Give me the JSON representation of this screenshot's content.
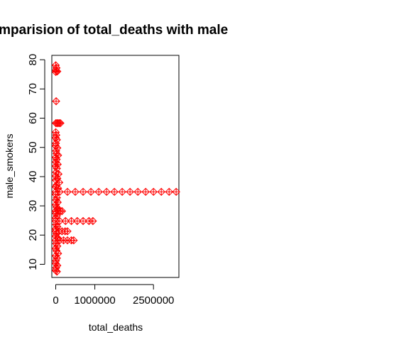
{
  "chart_data": {
    "type": "scatter",
    "title": "Comparision of total_deaths with male",
    "xlabel": "total_deaths",
    "ylabel": "male_smokers",
    "xlim": [
      -100000,
      3150000
    ],
    "ylim": [
      5.5,
      81.5
    ],
    "xticks": [
      0,
      1000000,
      2500000
    ],
    "xtick_labels": [
      "0",
      "1000000",
      "2500000"
    ],
    "yticks": [
      10,
      20,
      30,
      40,
      50,
      60,
      70,
      80
    ],
    "ytick_labels": [
      "10",
      "20",
      "30",
      "40",
      "50",
      "60",
      "70",
      "80"
    ],
    "marker": "diamond-plus",
    "color": "#ff0000",
    "grid": false,
    "series": [
      {
        "points": [
          [
            0,
            78.1
          ],
          [
            20000,
            77.2
          ],
          [
            5000,
            76.4
          ],
          [
            40000,
            76.0
          ],
          [
            2000,
            75.8
          ],
          [
            10000,
            65.8
          ],
          [
            3000,
            58.3
          ],
          [
            30000,
            58.3
          ],
          [
            60000,
            58.3
          ],
          [
            90000,
            58.3
          ],
          [
            120000,
            58.3
          ],
          [
            0,
            55.2
          ],
          [
            15000,
            54.2
          ],
          [
            0,
            53.3
          ],
          [
            30000,
            52.6
          ],
          [
            5000,
            51.4
          ],
          [
            0,
            50.5
          ],
          [
            40000,
            49.8
          ],
          [
            10000,
            48.8
          ],
          [
            20000,
            47.9
          ],
          [
            60000,
            47.3
          ],
          [
            0,
            46.6
          ],
          [
            25000,
            45.9
          ],
          [
            5000,
            45.0
          ],
          [
            50000,
            44.2
          ],
          [
            0,
            43.6
          ],
          [
            30000,
            42.8
          ],
          [
            10000,
            41.5
          ],
          [
            70000,
            40.9
          ],
          [
            0,
            40.2
          ],
          [
            40000,
            39.4
          ],
          [
            5000,
            38.8
          ],
          [
            90000,
            38.0
          ],
          [
            20000,
            37.1
          ],
          [
            0,
            36.5
          ],
          [
            60000,
            36.0
          ],
          [
            0,
            34.8
          ],
          [
            100000,
            34.8
          ],
          [
            300000,
            34.8
          ],
          [
            500000,
            34.8
          ],
          [
            700000,
            34.8
          ],
          [
            900000,
            34.8
          ],
          [
            1100000,
            34.8
          ],
          [
            1300000,
            34.8
          ],
          [
            1500000,
            34.8
          ],
          [
            1700000,
            34.8
          ],
          [
            1900000,
            34.8
          ],
          [
            2100000,
            34.8
          ],
          [
            2300000,
            34.8
          ],
          [
            2500000,
            34.8
          ],
          [
            2700000,
            34.8
          ],
          [
            2900000,
            34.8
          ],
          [
            3080000,
            34.8
          ],
          [
            0,
            33.9
          ],
          [
            30000,
            32.8
          ],
          [
            10000,
            32.0
          ],
          [
            50000,
            31.2
          ],
          [
            0,
            30.4
          ],
          [
            20000,
            29.6
          ],
          [
            40000,
            28.8
          ],
          [
            0,
            28.2
          ],
          [
            60000,
            28.2
          ],
          [
            120000,
            28.2
          ],
          [
            160000,
            28.2
          ],
          [
            5000,
            27.4
          ],
          [
            30000,
            26.6
          ],
          [
            0,
            25.8
          ],
          [
            0,
            24.8
          ],
          [
            100000,
            24.8
          ],
          [
            250000,
            24.8
          ],
          [
            400000,
            24.8
          ],
          [
            550000,
            24.8
          ],
          [
            700000,
            24.8
          ],
          [
            850000,
            24.8
          ],
          [
            950000,
            24.8
          ],
          [
            10000,
            23.6
          ],
          [
            40000,
            22.9
          ],
          [
            0,
            22.1
          ],
          [
            0,
            21.3
          ],
          [
            80000,
            21.3
          ],
          [
            160000,
            21.3
          ],
          [
            240000,
            21.3
          ],
          [
            300000,
            21.3
          ],
          [
            20000,
            20.5
          ],
          [
            0,
            19.6
          ],
          [
            50000,
            19.0
          ],
          [
            0,
            18.2
          ],
          [
            100000,
            18.2
          ],
          [
            200000,
            18.2
          ],
          [
            300000,
            18.2
          ],
          [
            400000,
            18.2
          ],
          [
            460000,
            18.2
          ],
          [
            10000,
            17.1
          ],
          [
            40000,
            16.2
          ],
          [
            0,
            15.4
          ],
          [
            20000,
            14.6
          ],
          [
            60000,
            13.7
          ],
          [
            0,
            12.9
          ],
          [
            30000,
            12.1
          ],
          [
            5000,
            11.2
          ],
          [
            0,
            10.3
          ],
          [
            40000,
            9.6
          ],
          [
            10000,
            8.8
          ],
          [
            0,
            7.9
          ],
          [
            30000,
            7.5
          ]
        ]
      }
    ]
  }
}
